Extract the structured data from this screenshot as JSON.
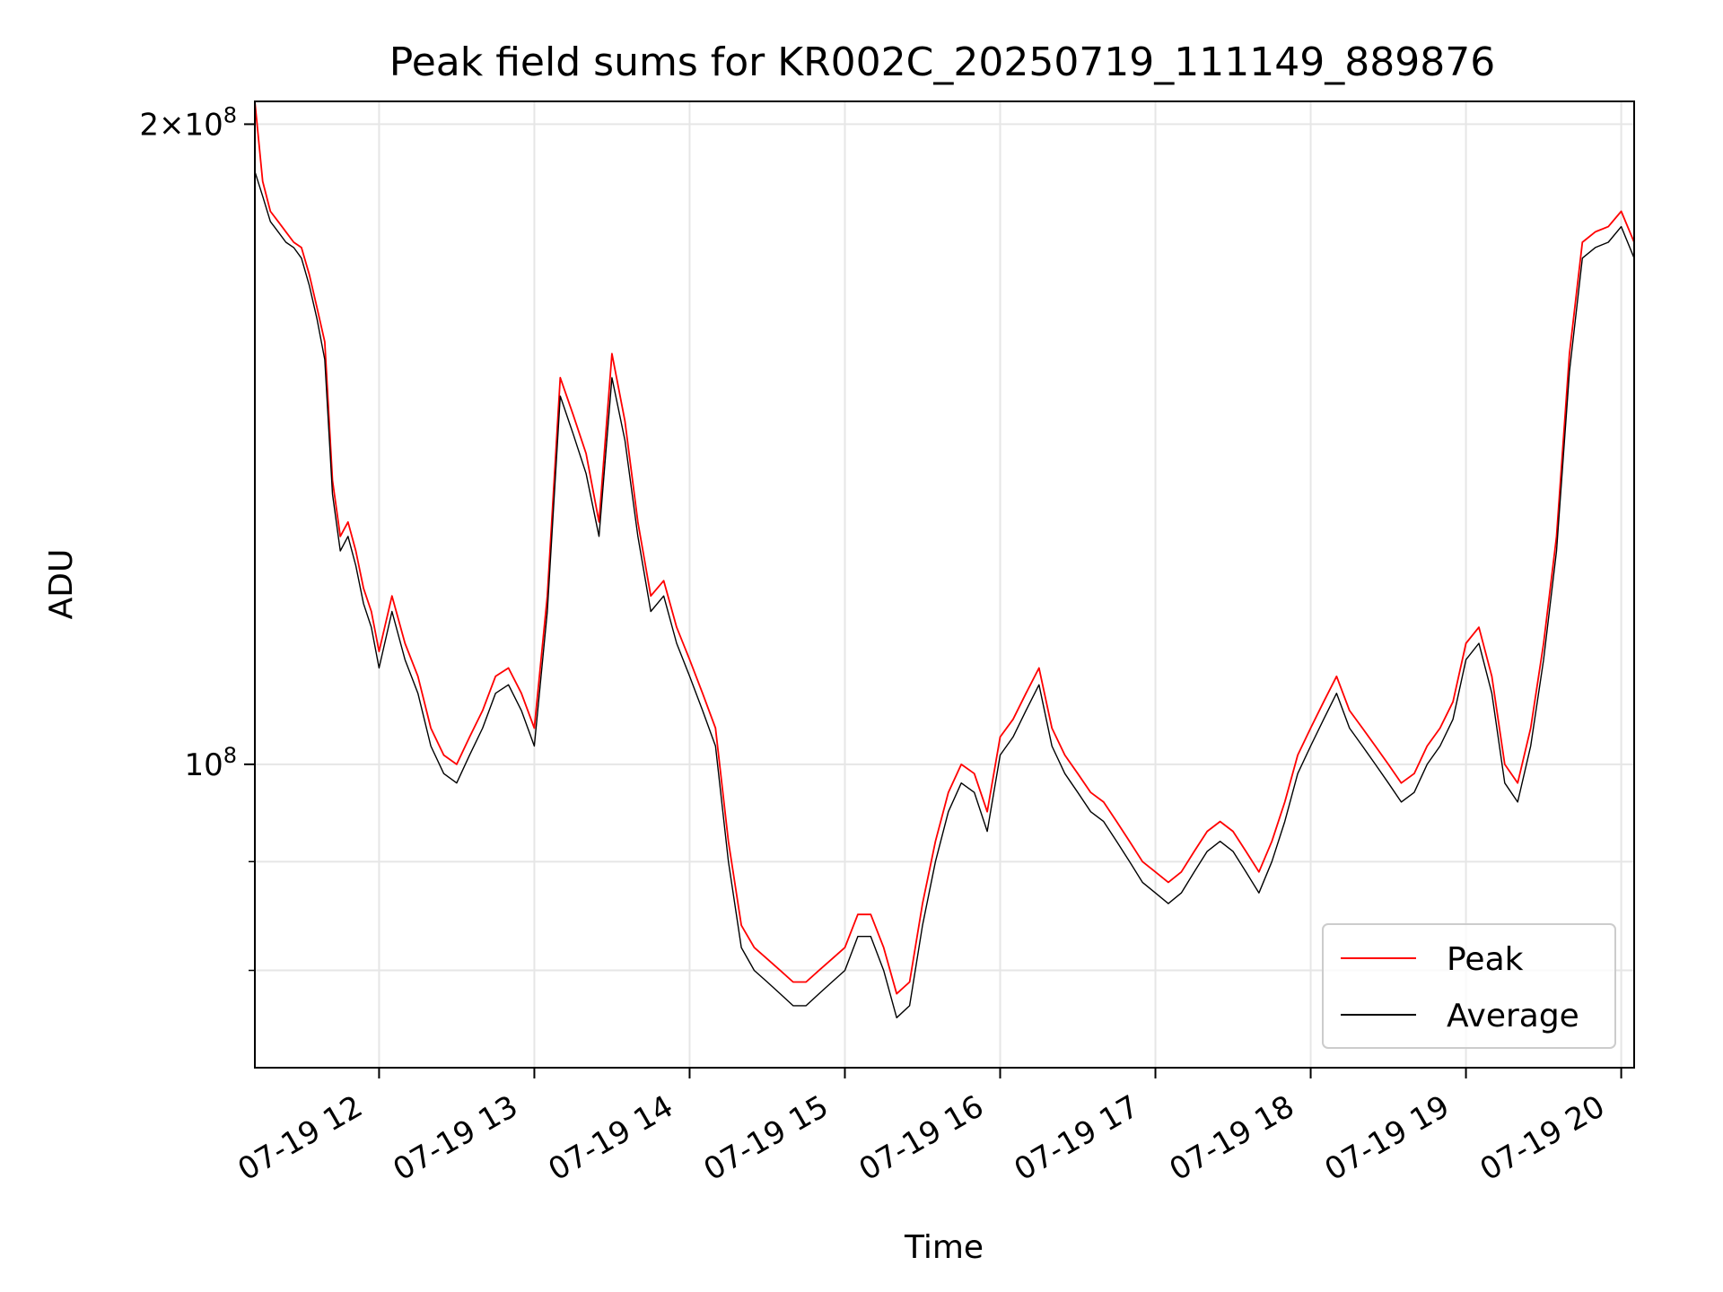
{
  "chart_data": {
    "type": "line",
    "title": "Peak field sums for KR002C_20250719_111149_889876",
    "xlabel": "Time",
    "ylabel": "ADU",
    "x_range": [
      "2025-07-19T11:12",
      "2025-07-19T20:05"
    ],
    "y_scale": "log",
    "ylim": [
      72000000,
      205000000
    ],
    "y_ticks": [
      {
        "value": 200000000,
        "base": "2×10",
        "exp": "8"
      },
      {
        "value": 100000000,
        "base": "10",
        "exp": "8"
      }
    ],
    "y_minor_ticks": [
      90000000,
      80000000,
      70000000
    ],
    "x_ticks": [
      {
        "time": "2025-07-19T12:00",
        "label": "07-19 12"
      },
      {
        "time": "2025-07-19T13:00",
        "label": "07-19 13"
      },
      {
        "time": "2025-07-19T14:00",
        "label": "07-19 14"
      },
      {
        "time": "2025-07-19T15:00",
        "label": "07-19 15"
      },
      {
        "time": "2025-07-19T16:00",
        "label": "07-19 16"
      },
      {
        "time": "2025-07-19T17:00",
        "label": "07-19 17"
      },
      {
        "time": "2025-07-19T18:00",
        "label": "07-19 18"
      },
      {
        "time": "2025-07-19T19:00",
        "label": "07-19 19"
      },
      {
        "time": "2025-07-19T20:00",
        "label": "07-19 20"
      }
    ],
    "grid": true,
    "legend_position": "lower-right",
    "colors": {
      "peak": "#ff0000",
      "average": "#000000",
      "grid": "#e6e6e6"
    },
    "series": [
      {
        "name": "Peak",
        "color": "#ff0000",
        "x": [
          "11:12",
          "11:15",
          "11:18",
          "11:21",
          "11:24",
          "11:27",
          "11:30",
          "11:33",
          "11:36",
          "11:39",
          "11:42",
          "11:45",
          "11:48",
          "11:51",
          "11:54",
          "11:57",
          "12:00",
          "12:05",
          "12:10",
          "12:15",
          "12:20",
          "12:25",
          "12:30",
          "12:35",
          "12:40",
          "12:45",
          "12:50",
          "12:55",
          "13:00",
          "13:05",
          "13:10",
          "13:15",
          "13:20",
          "13:25",
          "13:30",
          "13:35",
          "13:40",
          "13:45",
          "13:50",
          "13:55",
          "14:00",
          "14:05",
          "14:10",
          "14:15",
          "14:20",
          "14:25",
          "14:30",
          "14:35",
          "14:40",
          "14:45",
          "14:50",
          "14:55",
          "15:00",
          "15:05",
          "15:10",
          "15:15",
          "15:20",
          "15:25",
          "15:30",
          "15:35",
          "15:40",
          "15:45",
          "15:50",
          "15:55",
          "16:00",
          "16:05",
          "16:10",
          "16:15",
          "16:20",
          "16:25",
          "16:30",
          "16:35",
          "16:40",
          "16:45",
          "16:50",
          "16:55",
          "17:00",
          "17:05",
          "17:10",
          "17:15",
          "17:20",
          "17:25",
          "17:30",
          "17:35",
          "17:40",
          "17:45",
          "17:50",
          "17:55",
          "18:00",
          "18:05",
          "18:10",
          "18:15",
          "18:20",
          "18:25",
          "18:30",
          "18:35",
          "18:40",
          "18:45",
          "18:50",
          "18:55",
          "19:00",
          "19:05",
          "19:10",
          "19:15",
          "19:20",
          "19:25",
          "19:30",
          "19:35",
          "19:40",
          "19:45",
          "19:50",
          "19:55",
          "20:00",
          "20:05"
        ],
        "values": [
          205000000,
          188000000,
          182000000,
          180000000,
          178000000,
          176000000,
          175000000,
          170000000,
          164000000,
          158000000,
          136000000,
          128000000,
          130000000,
          126000000,
          121000000,
          118000000,
          113000000,
          120000000,
          114000000,
          110000000,
          104000000,
          101000000,
          100000000,
          103000000,
          106000000,
          110000000,
          111000000,
          108000000,
          104000000,
          120000000,
          152000000,
          146000000,
          140000000,
          130000000,
          156000000,
          145000000,
          130000000,
          120000000,
          122000000,
          116000000,
          112000000,
          108000000,
          104000000,
          92000000,
          84000000,
          82000000,
          81000000,
          80000000,
          79000000,
          79000000,
          80000000,
          81000000,
          82000000,
          85000000,
          85000000,
          82000000,
          78000000,
          79000000,
          86000000,
          92000000,
          97000000,
          100000000,
          99000000,
          95000000,
          103000000,
          105000000,
          108000000,
          111000000,
          104000000,
          101000000,
          99000000,
          97000000,
          96000000,
          94000000,
          92000000,
          90000000,
          89000000,
          88000000,
          89000000,
          91000000,
          93000000,
          94000000,
          93000000,
          91000000,
          89000000,
          92000000,
          96000000,
          101000000,
          104000000,
          107000000,
          110000000,
          106000000,
          104000000,
          102000000,
          100000000,
          98000000,
          99000000,
          102000000,
          104000000,
          107000000,
          114000000,
          116000000,
          110000000,
          100000000,
          98000000,
          104000000,
          114000000,
          128000000,
          156000000,
          176000000,
          178000000,
          179000000,
          182000000,
          176000000
        ]
      },
      {
        "name": "Average",
        "color": "#000000",
        "x": [
          "11:12",
          "11:15",
          "11:18",
          "11:21",
          "11:24",
          "11:27",
          "11:30",
          "11:33",
          "11:36",
          "11:39",
          "11:42",
          "11:45",
          "11:48",
          "11:51",
          "11:54",
          "11:57",
          "12:00",
          "12:05",
          "12:10",
          "12:15",
          "12:20",
          "12:25",
          "12:30",
          "12:35",
          "12:40",
          "12:45",
          "12:50",
          "12:55",
          "13:00",
          "13:05",
          "13:10",
          "13:15",
          "13:20",
          "13:25",
          "13:30",
          "13:35",
          "13:40",
          "13:45",
          "13:50",
          "13:55",
          "14:00",
          "14:05",
          "14:10",
          "14:15",
          "14:20",
          "14:25",
          "14:30",
          "14:35",
          "14:40",
          "14:45",
          "14:50",
          "14:55",
          "15:00",
          "15:05",
          "15:10",
          "15:15",
          "15:20",
          "15:25",
          "15:30",
          "15:35",
          "15:40",
          "15:45",
          "15:50",
          "15:55",
          "16:00",
          "16:05",
          "16:10",
          "16:15",
          "16:20",
          "16:25",
          "16:30",
          "16:35",
          "16:40",
          "16:45",
          "16:50",
          "16:55",
          "17:00",
          "17:05",
          "17:10",
          "17:15",
          "17:20",
          "17:25",
          "17:30",
          "17:35",
          "17:40",
          "17:45",
          "17:50",
          "17:55",
          "18:00",
          "18:05",
          "18:10",
          "18:15",
          "18:20",
          "18:25",
          "18:30",
          "18:35",
          "18:40",
          "18:45",
          "18:50",
          "18:55",
          "19:00",
          "19:05",
          "19:10",
          "19:15",
          "19:20",
          "19:25",
          "19:30",
          "19:35",
          "19:40",
          "19:45",
          "19:50",
          "19:55",
          "20:00",
          "20:05"
        ],
        "values": [
          190000000,
          185000000,
          180000000,
          178000000,
          176000000,
          175000000,
          173000000,
          168000000,
          162000000,
          155000000,
          134000000,
          126000000,
          128000000,
          124000000,
          119000000,
          116000000,
          111000000,
          118000000,
          112000000,
          108000000,
          102000000,
          99000000,
          98000000,
          101000000,
          104000000,
          108000000,
          109000000,
          106000000,
          102000000,
          118000000,
          149000000,
          143000000,
          137000000,
          128000000,
          152000000,
          142000000,
          128000000,
          118000000,
          120000000,
          114000000,
          110000000,
          106000000,
          102000000,
          90000000,
          82000000,
          80000000,
          79000000,
          78000000,
          77000000,
          77000000,
          78000000,
          79000000,
          80000000,
          83000000,
          83000000,
          80000000,
          76000000,
          77000000,
          84000000,
          90000000,
          95000000,
          98000000,
          97000000,
          93000000,
          101000000,
          103000000,
          106000000,
          109000000,
          102000000,
          99000000,
          97000000,
          95000000,
          94000000,
          92000000,
          90000000,
          88000000,
          87000000,
          86000000,
          87000000,
          89000000,
          91000000,
          92000000,
          91000000,
          89000000,
          87000000,
          90000000,
          94000000,
          99000000,
          102000000,
          105000000,
          108000000,
          104000000,
          102000000,
          100000000,
          98000000,
          96000000,
          97000000,
          100000000,
          102000000,
          105000000,
          112000000,
          114000000,
          108000000,
          98000000,
          96000000,
          102000000,
          112000000,
          126000000,
          153000000,
          173000000,
          175000000,
          176000000,
          179000000,
          173000000
        ]
      }
    ]
  }
}
